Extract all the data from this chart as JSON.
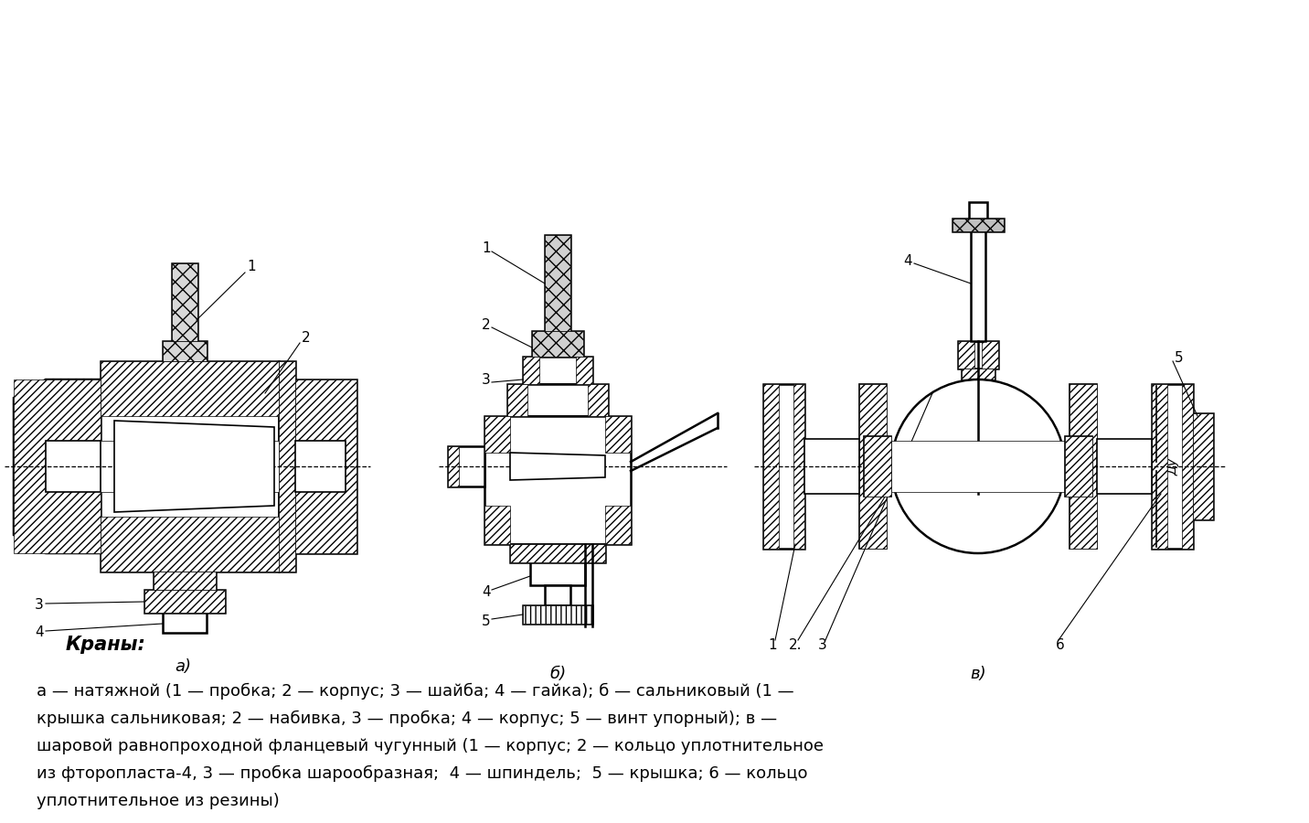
{
  "title": "Краны:",
  "label_a": "а)",
  "label_b": "б)",
  "label_v": "в)",
  "description_line1": "а — натяжной (1 — пробка; 2 — корпус; 3 — шайба; 4 — гайка); б — сальниковый (1 —",
  "description_line2": "крышка сальниковая; 2 — набивка, 3 — пробка; 4 — корпус; 5 — винт упорный); в —",
  "description_line3": "шаровой равнопроходной фланцевый чугунный (1 — корпус; 2 — кольцо уплотнительное",
  "description_line4": "из фторопласта-4, 3 — пробка шарообразная;  4 — шпиндель;  5 — крышка; 6 — кольцо",
  "description_line5": "уплотнительное из резины)",
  "bg_color": "#ffffff",
  "text_color": "#000000",
  "line_color": "#000000",
  "fig_width": 14.32,
  "fig_height": 9.0,
  "dpi": 100
}
